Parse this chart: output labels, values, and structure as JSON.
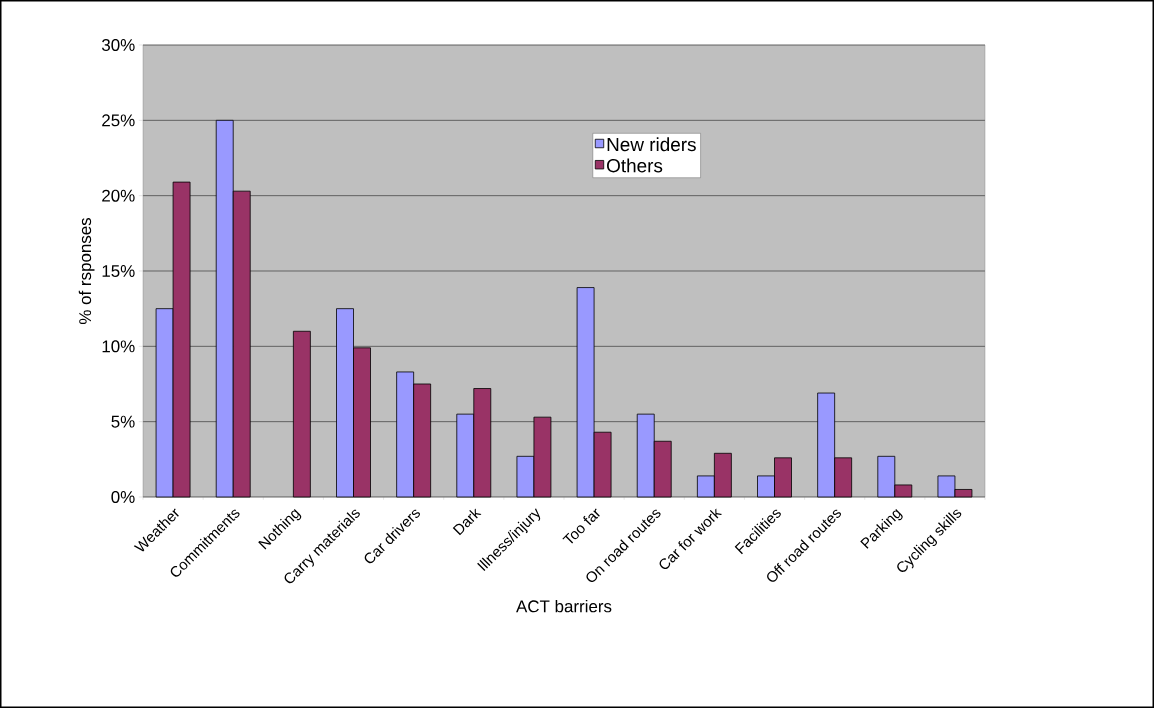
{
  "chart_data": {
    "type": "bar",
    "xlabel": "ACT barriers",
    "ylabel": "% of rsponses",
    "categories": [
      "Weather",
      "Commitments",
      "Nothing",
      "Carry materials",
      "Car drivers",
      "Dark",
      "Illness/injury",
      "Too far",
      "On road routes",
      "Car for work",
      "Facilities",
      "Off road routes",
      "Parking",
      "Cycling skills"
    ],
    "series": [
      {
        "name": "New riders",
        "color": "#9999ff",
        "values": [
          12.5,
          25,
          null,
          12.5,
          8.3,
          5.5,
          2.7,
          13.9,
          5.5,
          1.4,
          1.4,
          6.9,
          2.7,
          1.4
        ]
      },
      {
        "name": "Others",
        "color": "#993366",
        "values": [
          20.9,
          20.3,
          11.0,
          9.9,
          7.5,
          7.2,
          5.3,
          4.3,
          3.7,
          2.9,
          2.6,
          2.6,
          0.8,
          0.5
        ]
      }
    ],
    "ylim": [
      0,
      30
    ],
    "yticks": [
      {
        "value": 0,
        "label": "0%"
      },
      {
        "value": 5,
        "label": "5%"
      },
      {
        "value": 10,
        "label": "10%"
      },
      {
        "value": 15,
        "label": "15%"
      },
      {
        "value": 20,
        "label": "20%"
      },
      {
        "value": 25,
        "label": "25%"
      },
      {
        "value": 30,
        "label": "30%"
      }
    ],
    "grid": "y",
    "legend": "top right"
  }
}
